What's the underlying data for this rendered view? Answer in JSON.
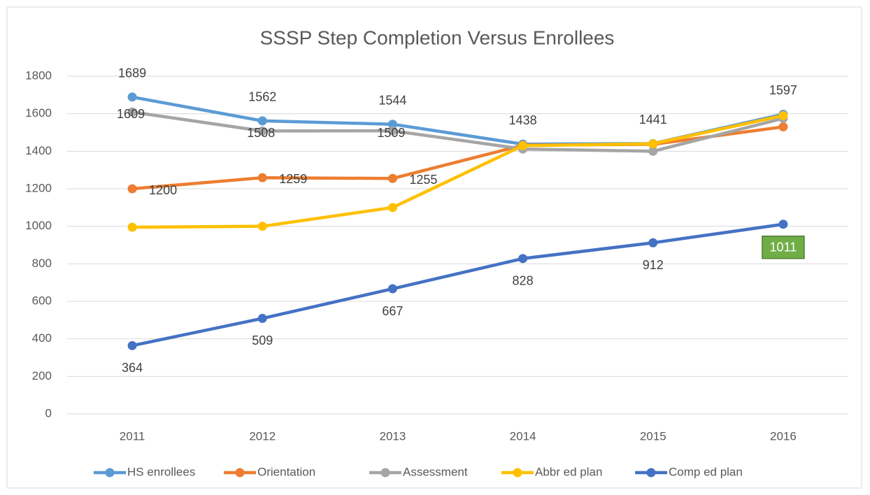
{
  "chart_data": {
    "type": "line",
    "title": "SSSP Step Completion Versus Enrollees",
    "categories": [
      "2011",
      "2012",
      "2013",
      "2014",
      "2015",
      "2016"
    ],
    "ylim": [
      0,
      1800
    ],
    "yticks": [
      0,
      200,
      400,
      600,
      800,
      1000,
      1200,
      1400,
      1600,
      1800
    ],
    "grid": true,
    "legend": "bottom",
    "series": [
      {
        "name": "HS enrollees",
        "color": "#5b9bd5",
        "values": [
          1689,
          1562,
          1544,
          1438,
          1441,
          1597
        ],
        "value_labels": [
          "1689",
          "1562",
          "1544",
          "1438",
          "1441",
          "1597"
        ]
      },
      {
        "name": "Orientation",
        "color": "#ed7d31",
        "values": [
          1200,
          1259,
          1255,
          1432,
          1437,
          1530
        ],
        "value_labels": [
          "1200",
          "1259",
          "1255",
          null,
          null,
          null
        ]
      },
      {
        "name": "Assessment",
        "color": "#a5a5a5",
        "values": [
          1609,
          1508,
          1509,
          1412,
          1400,
          1575
        ],
        "value_labels": [
          "1609",
          "1508",
          "1509",
          null,
          null,
          null
        ]
      },
      {
        "name": "Abbr ed plan",
        "color": "#ffc000",
        "values": [
          995,
          1000,
          1100,
          1430,
          1440,
          1590
        ],
        "value_labels": [
          null,
          null,
          null,
          null,
          null,
          null
        ]
      },
      {
        "name": "Comp ed plan",
        "color": "#4472c4",
        "values": [
          364,
          509,
          667,
          828,
          912,
          1011
        ],
        "value_labels": [
          "364",
          "509",
          "667",
          "828",
          "912",
          "1011"
        ]
      }
    ]
  }
}
